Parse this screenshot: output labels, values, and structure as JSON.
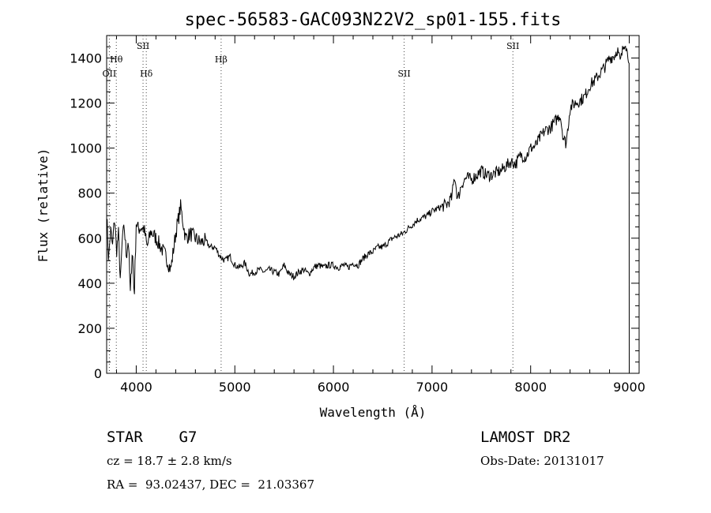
{
  "chart_data": {
    "type": "line",
    "title": "spec-56583-GAC093N22V2_sp01-155.fits",
    "xlabel": "Wavelength (Å)",
    "ylabel": "Flux (relative)",
    "xlim": [
      3700,
      9100
    ],
    "ylim": [
      0,
      1500
    ],
    "x_ticks": [
      4000,
      5000,
      6000,
      7000,
      8000,
      9000
    ],
    "y_ticks": [
      0,
      200,
      400,
      600,
      800,
      1000,
      1200,
      1400
    ],
    "grid": false,
    "lines": [
      {
        "label": "OII",
        "x": 3727,
        "tier": "low"
      },
      {
        "label": "Hθ",
        "x": 3798,
        "tier": "mid"
      },
      {
        "label": "SII",
        "x": 4069,
        "tier": "high"
      },
      {
        "label": "Hδ",
        "x": 4102,
        "tier": "low"
      },
      {
        "label": "Hβ",
        "x": 4861,
        "tier": "mid"
      },
      {
        "label": "SII",
        "x": 6717,
        "tier": "low"
      },
      {
        "label": "SII",
        "x": 7820,
        "tier": "high"
      }
    ],
    "series": [
      {
        "x": [
          3700,
          3720,
          3740,
          3760,
          3780,
          3800,
          3820,
          3840,
          3860,
          3880,
          3900,
          3920,
          3940,
          3960,
          3980,
          4000,
          4020,
          4050,
          4080,
          4110,
          4150,
          4200,
          4250,
          4300,
          4350,
          4400,
          4450,
          4500,
          4550,
          4600,
          4650,
          4700,
          4750,
          4800,
          4850,
          4900,
          4950,
          5000,
          5050,
          5100,
          5150,
          5200,
          5250,
          5300,
          5350,
          5400,
          5450,
          5500,
          5550,
          5600,
          5650,
          5700,
          5750,
          5800,
          5850,
          5900,
          5950,
          6000,
          6050,
          6100,
          6150,
          6200,
          6250,
          6300,
          6350,
          6400,
          6450,
          6500,
          6550,
          6600,
          6650,
          6700,
          6750,
          6800,
          6850,
          6900,
          6950,
          7000,
          7050,
          7100,
          7150,
          7200,
          7230,
          7260,
          7300,
          7350,
          7400,
          7450,
          7500,
          7550,
          7600,
          7650,
          7700,
          7750,
          7800,
          7850,
          7900,
          7950,
          8000,
          8050,
          8100,
          8150,
          8200,
          8250,
          8300,
          8330,
          8360,
          8400,
          8450,
          8500,
          8550,
          8600,
          8650,
          8700,
          8750,
          8800,
          8850,
          8880,
          8910,
          8940,
          8960,
          8980,
          9000
        ],
        "y": [
          720,
          500,
          640,
          560,
          700,
          540,
          620,
          400,
          610,
          640,
          520,
          600,
          350,
          560,
          340,
          670,
          640,
          650,
          640,
          560,
          630,
          600,
          560,
          520,
          460,
          620,
          740,
          600,
          620,
          600,
          580,
          590,
          560,
          560,
          520,
          500,
          520,
          480,
          470,
          490,
          440,
          450,
          460,
          450,
          460,
          450,
          440,
          480,
          440,
          430,
          450,
          460,
          440,
          470,
          480,
          470,
          480,
          480,
          470,
          480,
          470,
          490,
          480,
          510,
          530,
          540,
          560,
          560,
          580,
          600,
          610,
          620,
          640,
          660,
          680,
          690,
          700,
          720,
          730,
          740,
          750,
          780,
          880,
          770,
          840,
          870,
          860,
          880,
          900,
          880,
          880,
          890,
          900,
          920,
          940,
          930,
          970,
          960,
          1000,
          1010,
          1050,
          1080,
          1090,
          1120,
          1150,
          1050,
          1020,
          1180,
          1200,
          1210,
          1230,
          1280,
          1300,
          1330,
          1360,
          1400,
          1410,
          1440,
          1380,
          1450,
          1480,
          1420,
          1400
        ]
      }
    ]
  },
  "info": {
    "class": "STAR    G7",
    "survey": "LAMOST DR2",
    "cz": "cz = 18.7 ± 2.8 km/s",
    "obs_date": "Obs-Date: 20131017",
    "coords": "RA =  93.02437, DEC =  21.03367"
  }
}
